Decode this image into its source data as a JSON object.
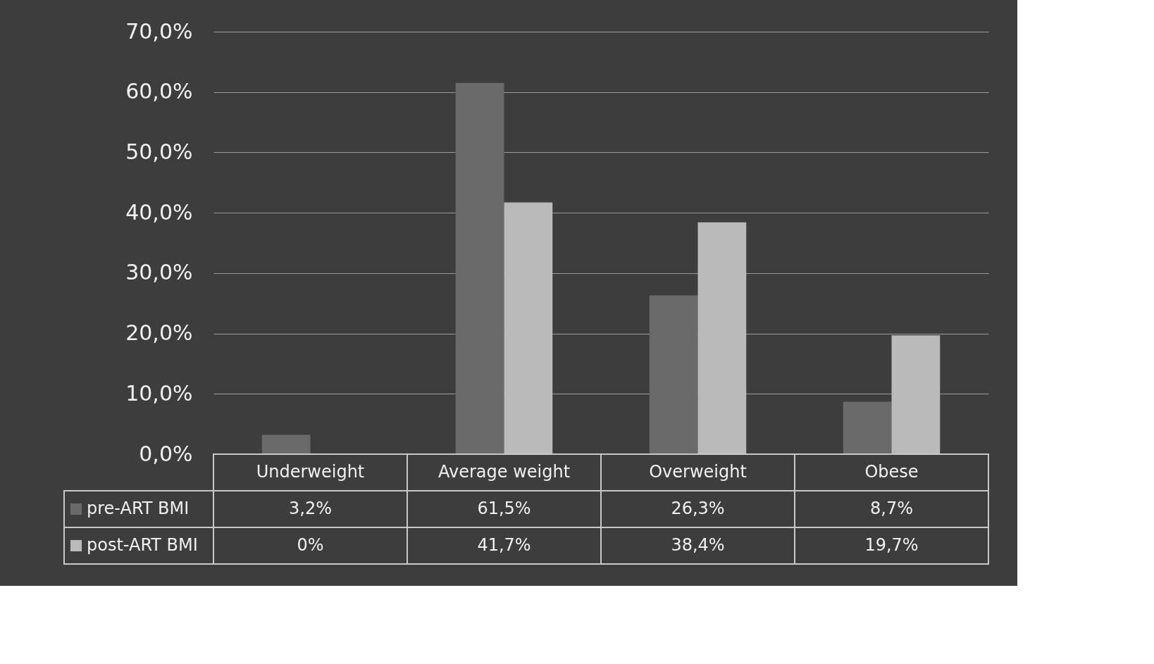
{
  "chart_data": {
    "type": "bar",
    "categories": [
      "Underweight",
      "Average weight",
      "Overweight",
      "Obese"
    ],
    "series": [
      {
        "name": "pre-ART BMI",
        "color": "#6a6a6a",
        "values": [
          3.2,
          61.5,
          26.3,
          8.7
        ],
        "value_labels": [
          "3,2%",
          "61,5%",
          "26,3%",
          "8,7%"
        ]
      },
      {
        "name": "post-ART BMI",
        "color": "#bababa",
        "values": [
          0,
          41.7,
          38.4,
          19.7
        ],
        "value_labels": [
          "0%",
          "41,7%",
          "38,4%",
          "19,7%"
        ]
      }
    ],
    "ylim": [
      0,
      70
    ],
    "yticks": [
      {
        "value": 0,
        "label": "0,0%"
      },
      {
        "value": 10,
        "label": "10,0%"
      },
      {
        "value": 20,
        "label": "20,0%"
      },
      {
        "value": 30,
        "label": "30,0%"
      },
      {
        "value": 40,
        "label": "40,0%"
      },
      {
        "value": 50,
        "label": "50,0%"
      },
      {
        "value": 60,
        "label": "60,0%"
      },
      {
        "value": 70,
        "label": "70,0%"
      }
    ],
    "grid": "y",
    "legend": "bottom"
  }
}
